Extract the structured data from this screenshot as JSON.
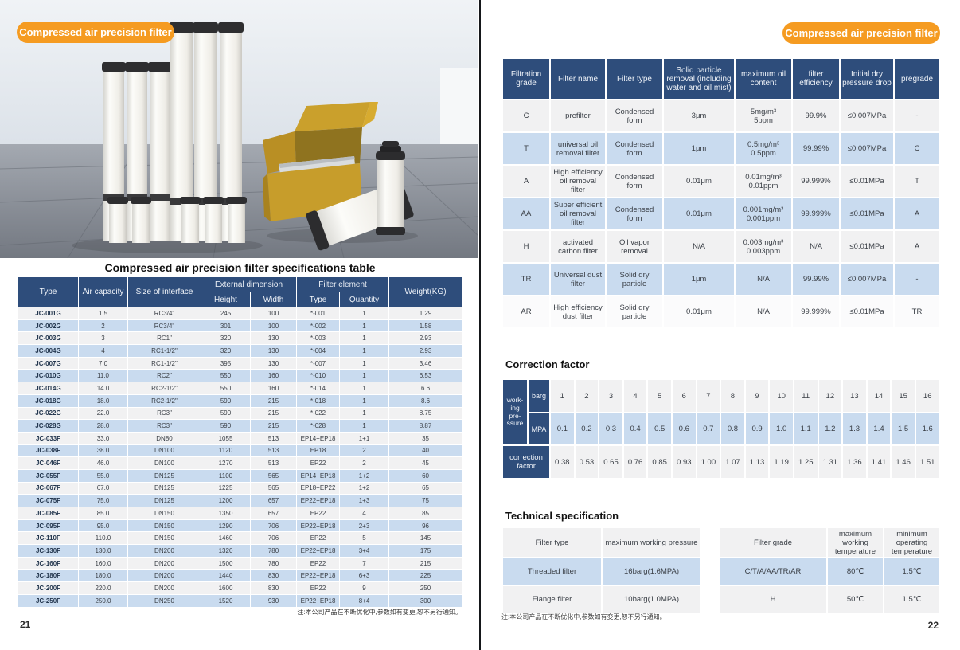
{
  "colors": {
    "navy": "#2e4d7b",
    "row_blue": "#c9dbef",
    "row_gray": "#f1f1f2",
    "orange": "#f59b21"
  },
  "left_page": {
    "badge": "Compressed air precision filter",
    "table_title": "Compressed air precision filter specifications table",
    "spec_table": {
      "headers": {
        "type": "Type",
        "air_capacity": "Air capacity",
        "size_of_interface": "Size of interface",
        "external_dimension": "External dimension",
        "height": "Height",
        "width": "Width",
        "filter_element": "Filter element",
        "el_type": "Type",
        "quantity": "Quantity",
        "weight": "Weight(KG)"
      },
      "rows": [
        [
          "JC-001G",
          "1.5",
          "RC3/4\"",
          "245",
          "100",
          "*-001",
          "1",
          "1.29"
        ],
        [
          "JC-002G",
          "2",
          "RC3/4\"",
          "301",
          "100",
          "*-002",
          "1",
          "1.58"
        ],
        [
          "JC-003G",
          "3",
          "RC1\"",
          "320",
          "130",
          "*-003",
          "1",
          "2.93"
        ],
        [
          "JC-004G",
          "4",
          "RC1-1/2\"",
          "320",
          "130",
          "*-004",
          "1",
          "2.93"
        ],
        [
          "JC-007G",
          "7.0",
          "RC1-1/2\"",
          "395",
          "130",
          "*-007",
          "1",
          "3.46"
        ],
        [
          "JC-010G",
          "11.0",
          "RC2\"",
          "550",
          "160",
          "*-010",
          "1",
          "6.53"
        ],
        [
          "JC-014G",
          "14.0",
          "RC2-1/2\"",
          "550",
          "160",
          "*-014",
          "1",
          "6.6"
        ],
        [
          "JC-018G",
          "18.0",
          "RC2-1/2\"",
          "590",
          "215",
          "*-018",
          "1",
          "8.6"
        ],
        [
          "JC-022G",
          "22.0",
          "RC3\"",
          "590",
          "215",
          "*-022",
          "1",
          "8.75"
        ],
        [
          "JC-028G",
          "28.0",
          "RC3\"",
          "590",
          "215",
          "*-028",
          "1",
          "8.87"
        ],
        [
          "JC-033F",
          "33.0",
          "DN80",
          "1055",
          "513",
          "EP14+EP18",
          "1+1",
          "35"
        ],
        [
          "JC-038F",
          "38.0",
          "DN100",
          "1120",
          "513",
          "EP18",
          "2",
          "40"
        ],
        [
          "JC-046F",
          "46.0",
          "DN100",
          "1270",
          "513",
          "EP22",
          "2",
          "45"
        ],
        [
          "JC-055F",
          "55.0",
          "DN125",
          "1100",
          "565",
          "EP14+EP18",
          "1+2",
          "60"
        ],
        [
          "JC-067F",
          "67.0",
          "DN125",
          "1225",
          "565",
          "EP18+EP22",
          "1+2",
          "65"
        ],
        [
          "JC-075F",
          "75.0",
          "DN125",
          "1200",
          "657",
          "EP22+EP18",
          "1+3",
          "75"
        ],
        [
          "JC-085F",
          "85.0",
          "DN150",
          "1350",
          "657",
          "EP22",
          "4",
          "85"
        ],
        [
          "JC-095F",
          "95.0",
          "DN150",
          "1290",
          "706",
          "EP22+EP18",
          "2+3",
          "96"
        ],
        [
          "JC-110F",
          "110.0",
          "DN150",
          "1460",
          "706",
          "EP22",
          "5",
          "145"
        ],
        [
          "JC-130F",
          "130.0",
          "DN200",
          "1320",
          "780",
          "EP22+EP18",
          "3+4",
          "175"
        ],
        [
          "JC-160F",
          "160.0",
          "DN200",
          "1500",
          "780",
          "EP22",
          "7",
          "215"
        ],
        [
          "JC-180F",
          "180.0",
          "DN200",
          "1440",
          "830",
          "EP22+EP18",
          "6+3",
          "225"
        ],
        [
          "JC-200F",
          "220.0",
          "DN200",
          "1600",
          "830",
          "EP22",
          "9",
          "250"
        ],
        [
          "JC-250F",
          "250.0",
          "DN250",
          "1520",
          "930",
          "EP22+EP18",
          "8+4",
          "300"
        ]
      ]
    },
    "note": "注:本公司产品在不断优化中,参数如有变更,恕不另行通知。",
    "page_number": "21"
  },
  "right_page": {
    "badge": "Compressed air precision filter",
    "grade_table": {
      "headers": [
        "Filtration grade",
        "Filter name",
        "Filter type",
        "Solid particle removal (including water and oil mist)",
        "maximum oil content",
        "filter efficiency",
        "Initial dry pressure drop",
        "pregrade"
      ],
      "rows": [
        [
          "C",
          "prefilter",
          "Condensed form",
          "3μm",
          "5mg/m³\n5ppm",
          "99.9%",
          "≤0.007MPa",
          "-"
        ],
        [
          "T",
          "universal oil removal filter",
          "Condensed form",
          "1μm",
          "0.5mg/m³\n0.5ppm",
          "99.99%",
          "≤0.007MPa",
          "C"
        ],
        [
          "A",
          "High efficiency oil removal filter",
          "Condensed form",
          "0.01μm",
          "0.01mg/m³\n0.01ppm",
          "99.999%",
          "≤0.01MPa",
          "T"
        ],
        [
          "AA",
          "Super efficient oil removal filter",
          "Condensed form",
          "0.01μm",
          "0.001mg/m³\n0.001ppm",
          "99.999%",
          "≤0.01MPa",
          "A"
        ],
        [
          "H",
          "activated carbon filter",
          "Oil vapor removal",
          "N/A",
          "0.003mg/m³\n0.003ppm",
          "N/A",
          "≤0.01MPa",
          "A"
        ],
        [
          "TR",
          "Universal dust filter",
          "Solid dry particle",
          "1μm",
          "N/A",
          "99.99%",
          "≤0.007MPa",
          "-"
        ],
        [
          "AR",
          "High efficiency dust filter",
          "Solid dry particle",
          "0.01μm",
          "N/A",
          "99.999%",
          "≤0.01MPa",
          "TR"
        ]
      ]
    },
    "correction": {
      "title": "Correction factor",
      "working_pressure_label": "work-\ning\npre-\nssure",
      "barg_label": "barg",
      "mpa_label": "MPA",
      "factor_label": "correction\nfactor",
      "barg_values": [
        "1",
        "2",
        "3",
        "4",
        "5",
        "6",
        "7",
        "8",
        "9",
        "10",
        "11",
        "12",
        "13",
        "14",
        "15",
        "16"
      ],
      "mpa_values": [
        "0.1",
        "0.2",
        "0.3",
        "0.4",
        "0.5",
        "0.6",
        "0.7",
        "0.8",
        "0.9",
        "1.0",
        "1.1",
        "1.2",
        "1.3",
        "1.4",
        "1.5",
        "1.6"
      ],
      "factor_values": [
        "0.38",
        "0.53",
        "0.65",
        "0.76",
        "0.85",
        "0.93",
        "1.00",
        "1.07",
        "1.13",
        "1.19",
        "1.25",
        "1.31",
        "1.36",
        "1.41",
        "1.46",
        "1.51"
      ]
    },
    "tech": {
      "title": "Technical specification",
      "pressure_table": {
        "headers": [
          "Filter type",
          "maximum working pressure"
        ],
        "rows": [
          [
            "Threaded filter",
            "16barg(1.6MPA)"
          ],
          [
            "Flange filter",
            "10barg(1.0MPA)"
          ]
        ]
      },
      "temperature_table": {
        "headers": [
          "Filter grade",
          "maximum working temperature",
          "minimum operating temperature"
        ],
        "rows": [
          [
            "C/T/A/AA/TR/AR",
            "80℃",
            "1.5℃"
          ],
          [
            "H",
            "50℃",
            "1.5℃"
          ]
        ]
      }
    },
    "note": "注:本公司产品在不断优化中,参数如有变更,恕不另行通知。",
    "page_number": "22"
  }
}
